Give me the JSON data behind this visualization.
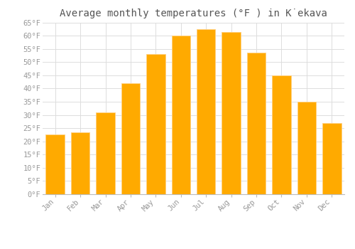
{
  "title": "Average monthly temperatures (°F ) in K̇ekava",
  "months": [
    "Jan",
    "Feb",
    "Mar",
    "Apr",
    "May",
    "Jun",
    "Jul",
    "Aug",
    "Sep",
    "Oct",
    "Nov",
    "Dec"
  ],
  "values": [
    22.5,
    23.5,
    31.0,
    42.0,
    53.0,
    60.0,
    62.5,
    61.5,
    53.5,
    45.0,
    35.0,
    27.0
  ],
  "bar_color": "#FFAA00",
  "bar_edge_color": "#FFD080",
  "ylim": [
    0,
    65
  ],
  "yticks": [
    0,
    5,
    10,
    15,
    20,
    25,
    30,
    35,
    40,
    45,
    50,
    55,
    60,
    65
  ],
  "background_color": "#ffffff",
  "grid_color": "#dddddd",
  "title_fontsize": 10,
  "tick_fontsize": 7.5,
  "tick_color": "#999999"
}
